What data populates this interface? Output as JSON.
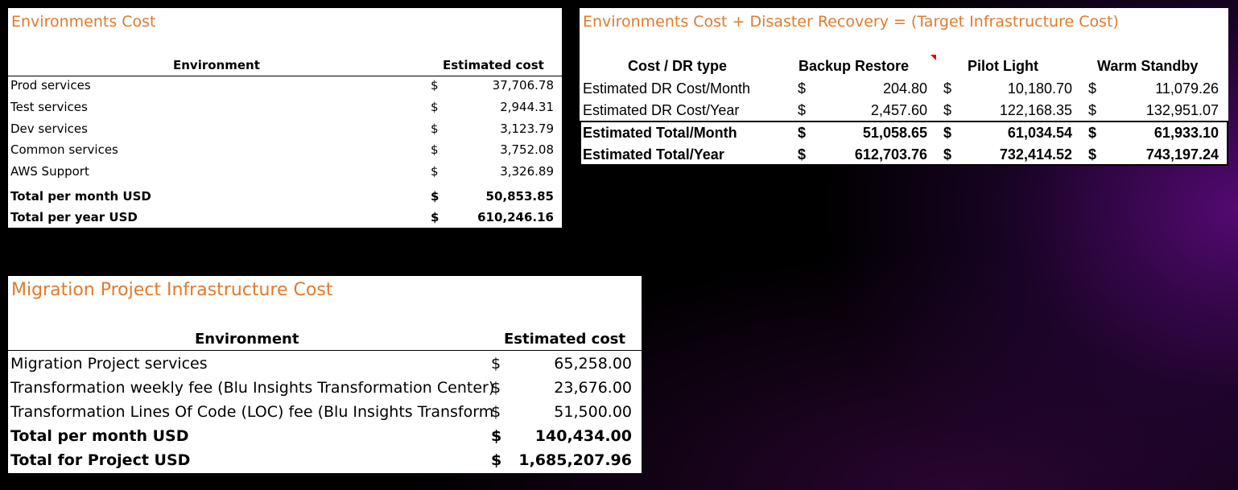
{
  "environments": {
    "title": "Environments Cost",
    "col_env": "Environment",
    "col_cost": "Estimated cost",
    "rows": [
      {
        "label": "Prod services",
        "cur": "$",
        "amount": "37,706.78"
      },
      {
        "label": "Test services",
        "cur": "$",
        "amount": "2,944.31"
      },
      {
        "label": "Dev services",
        "cur": "$",
        "amount": "3,123.79"
      },
      {
        "label": "Common services",
        "cur": "$",
        "amount": "3,752.08"
      },
      {
        "label": "AWS Support",
        "cur": "$",
        "amount": "3,326.89"
      }
    ],
    "totals": [
      {
        "label": "Total per month USD",
        "cur": "$",
        "amount": "50,853.85"
      },
      {
        "label": "Total per year USD",
        "cur": "$",
        "amount": "610,246.16"
      }
    ]
  },
  "disaster_recovery": {
    "title": "Environments Cost + Disaster Recovery = (Target Infrastructure Cost)",
    "headers": [
      "Cost / DR type",
      "Backup Restore",
      "Pilot Light",
      "Warm Standby"
    ],
    "rows": [
      {
        "label": "Estimated DR Cost/Month",
        "c1": "$",
        "v1": "204.80",
        "c2": "$",
        "v2": "10,180.70",
        "c3": "$",
        "v3": "11,079.26"
      },
      {
        "label": "Estimated DR Cost/Year",
        "c1": "$",
        "v1": "2,457.60",
        "c2": "$",
        "v2": "122,168.35",
        "c3": "$",
        "v3": "132,951.07"
      },
      {
        "label": "Estimated Total/Month",
        "c1": "$",
        "v1": "51,058.65",
        "c2": "$",
        "v2": "61,034.54",
        "c3": "$",
        "v3": "61,933.10"
      },
      {
        "label": "Estimated Total/Year",
        "c1": "$",
        "v1": "612,703.76",
        "c2": "$",
        "v2": "732,414.52",
        "c3": "$",
        "v3": "743,197.24"
      }
    ],
    "comment_marker_color": "#e00000"
  },
  "migration": {
    "title": "Migration Project Infrastructure Cost",
    "col_env": "Environment",
    "col_cost": "Estimated cost",
    "rows": [
      {
        "label": "Migration Project services",
        "cur": "$",
        "amount": "65,258.00"
      },
      {
        "label": "Transformation weekly fee (Blu Insights Transformation Center)",
        "cur": "$",
        "amount": "23,676.00"
      },
      {
        "label": "Transformation Lines Of Code (LOC) fee (Blu Insights Transform",
        "cur": "$",
        "amount": "51,500.00"
      }
    ],
    "totals": [
      {
        "label": "Total per month USD",
        "cur": "$",
        "amount": "140,434.00"
      },
      {
        "label": "Total for Project USD",
        "cur": "$",
        "amount": "1,685,207.96"
      }
    ]
  },
  "colors": {
    "title_orange": "#e07a2c",
    "background": "#000000",
    "accent_purple": "#580a78"
  }
}
